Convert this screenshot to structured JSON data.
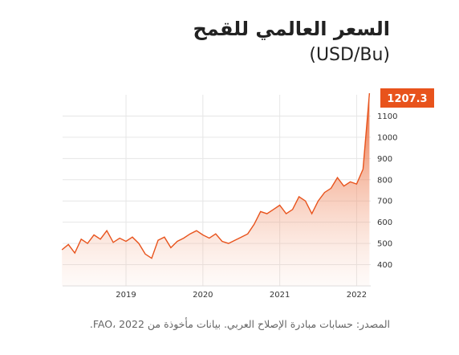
{
  "title": "السعر العالمي للقمح",
  "subtitle": "(USD/Bu)",
  "source": "المصدر: حسابات مبادرة الإصلاح العربي. بيانات مأخوذة من FAO، 2022.",
  "colors": {
    "line": "#e8531c",
    "badge": "#e8531c"
  },
  "chart_data": {
    "type": "area",
    "title": "السعر العالمي للقمح",
    "ylabel": "(USD/Bu)",
    "xlabel": "",
    "x_range": [
      "2018-03",
      "2022-03"
    ],
    "ylim": [
      300,
      1200
    ],
    "y_ticks": [
      400,
      500,
      600,
      700,
      800,
      900,
      1000,
      1100
    ],
    "x_ticks": [
      "2019",
      "2020",
      "2021",
      "2022"
    ],
    "grid": true,
    "last_value_label": "1207.3",
    "series": [
      {
        "x": [
          "2018-03",
          "2018-04",
          "2018-05",
          "2018-06",
          "2018-07",
          "2018-08",
          "2018-09",
          "2018-10",
          "2018-11",
          "2018-12",
          "2019-01",
          "2019-02",
          "2019-03",
          "2019-04",
          "2019-05",
          "2019-06",
          "2019-07",
          "2019-08",
          "2019-09",
          "2019-10",
          "2019-11",
          "2019-12",
          "2020-01",
          "2020-02",
          "2020-03",
          "2020-04",
          "2020-05",
          "2020-06",
          "2020-07",
          "2020-08",
          "2020-09",
          "2020-10",
          "2020-11",
          "2020-12",
          "2021-01",
          "2021-02",
          "2021-03",
          "2021-04",
          "2021-05",
          "2021-06",
          "2021-07",
          "2021-08",
          "2021-09",
          "2021-10",
          "2021-11",
          "2021-12",
          "2022-01",
          "2022-02",
          "2022-03"
        ],
        "values": [
          470,
          495,
          455,
          520,
          500,
          540,
          520,
          560,
          505,
          525,
          510,
          530,
          500,
          450,
          430,
          515,
          530,
          480,
          510,
          525,
          545,
          560,
          540,
          525,
          545,
          510,
          500,
          515,
          530,
          545,
          590,
          650,
          640,
          660,
          680,
          640,
          660,
          720,
          700,
          640,
          700,
          740,
          760,
          810,
          770,
          790,
          780,
          850,
          1207.3
        ]
      }
    ]
  }
}
